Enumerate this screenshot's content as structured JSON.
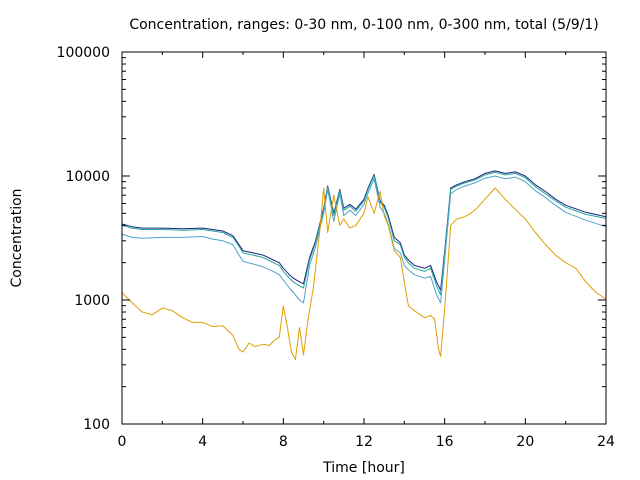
{
  "chart_data": {
    "type": "line",
    "title": "Concentration, ranges: 0-30 nm, 0-100 nm, 0-300 nm, total (5/9/1)",
    "xlabel": "Time [hour]",
    "ylabel": "Concentration",
    "xlim": [
      0,
      24
    ],
    "ylim": [
      100,
      100000
    ],
    "yscale": "log",
    "x_ticks": [
      "0",
      "4",
      "8",
      "12",
      "16",
      "20",
      "24"
    ],
    "y_ticks": [
      "100",
      "1000",
      "10000",
      "100000"
    ],
    "grid": false,
    "legend": "none",
    "series": [
      {
        "color": "#1a237e",
        "x": [
          0,
          0.5,
          1,
          2,
          3,
          4,
          4.5,
          5,
          5.5,
          5.8,
          6,
          6.5,
          7,
          7.5,
          7.8,
          8,
          8.3,
          8.5,
          8.8,
          9,
          9.3,
          9.6,
          10,
          10.2,
          10.5,
          10.8,
          11,
          11.3,
          11.6,
          12,
          12.2,
          12.5,
          12.8,
          13,
          13.2,
          13.5,
          13.8,
          14,
          14.2,
          14.5,
          15,
          15.3,
          15.6,
          15.8,
          16,
          16.3,
          16.6,
          17,
          17.5,
          18,
          18.5,
          19,
          19.5,
          20,
          20.5,
          21,
          21.5,
          22,
          23,
          24
        ],
        "y": [
          4100,
          3900,
          3800,
          3800,
          3750,
          3800,
          3700,
          3600,
          3300,
          2800,
          2500,
          2400,
          2300,
          2100,
          2000,
          1800,
          1600,
          1500,
          1400,
          1350,
          2200,
          3000,
          5500,
          8300,
          5000,
          7800,
          5500,
          5900,
          5400,
          6500,
          8000,
          10300,
          6300,
          5800,
          4800,
          3200,
          2900,
          2300,
          2100,
          1900,
          1800,
          1900,
          1400,
          1200,
          2500,
          8000,
          8500,
          9000,
          9500,
          10500,
          11000,
          10500,
          10800,
          10000,
          8500,
          7500,
          6500,
          5800,
          5100,
          4700
        ]
      },
      {
        "color": "#26a69a",
        "x": [
          0,
          0.5,
          1,
          2,
          3,
          4,
          4.5,
          5,
          5.5,
          5.8,
          6,
          6.5,
          7,
          7.5,
          7.8,
          8,
          8.3,
          8.5,
          8.8,
          9,
          9.3,
          9.6,
          10,
          10.2,
          10.5,
          10.8,
          11,
          11.3,
          11.6,
          12,
          12.2,
          12.5,
          12.8,
          13,
          13.2,
          13.5,
          13.8,
          14,
          14.2,
          14.5,
          15,
          15.3,
          15.6,
          15.8,
          16,
          16.3,
          16.6,
          17,
          17.5,
          18,
          18.5,
          19,
          19.5,
          20,
          20.5,
          21,
          21.5,
          22,
          23,
          24
        ],
        "y": [
          4000,
          3800,
          3700,
          3700,
          3650,
          3700,
          3600,
          3500,
          3200,
          2700,
          2400,
          2300,
          2200,
          2000,
          1900,
          1700,
          1500,
          1400,
          1300,
          1250,
          2100,
          2900,
          5300,
          8100,
          4800,
          7600,
          5300,
          5700,
          5200,
          6300,
          7800,
          10100,
          6100,
          5600,
          4600,
          3000,
          2800,
          2200,
          2000,
          1800,
          1700,
          1800,
          1300,
          1100,
          2400,
          7800,
          8300,
          8800,
          9300,
          10200,
          10700,
          10200,
          10500,
          9700,
          8200,
          7200,
          6300,
          5600,
          4900,
          4550
        ]
      },
      {
        "color": "#4fa3c7",
        "x": [
          0,
          0.5,
          1,
          2,
          3,
          4,
          4.5,
          5,
          5.5,
          5.8,
          6,
          6.5,
          7,
          7.5,
          7.8,
          8,
          8.3,
          8.5,
          8.8,
          9,
          9.3,
          9.6,
          10,
          10.2,
          10.5,
          10.8,
          11,
          11.3,
          11.6,
          12,
          12.2,
          12.5,
          12.8,
          13,
          13.2,
          13.5,
          13.8,
          14,
          14.2,
          14.5,
          15,
          15.3,
          15.6,
          15.8,
          16,
          16.3,
          16.6,
          17,
          17.5,
          18,
          18.5,
          19,
          19.5,
          20,
          20.5,
          21,
          21.5,
          22,
          23,
          24
        ],
        "y": [
          3400,
          3200,
          3150,
          3200,
          3200,
          3250,
          3100,
          3000,
          2800,
          2300,
          2050,
          1950,
          1850,
          1700,
          1600,
          1450,
          1250,
          1150,
          1000,
          950,
          1900,
          2700,
          5000,
          7800,
          4300,
          7200,
          4800,
          5300,
          4800,
          5900,
          7300,
          9500,
          5600,
          5000,
          4100,
          2600,
          2400,
          1900,
          1750,
          1600,
          1500,
          1550,
          1100,
          950,
          2100,
          7200,
          7800,
          8300,
          8800,
          9600,
          10000,
          9500,
          9800,
          9000,
          7600,
          6700,
          5800,
          5100,
          4400,
          3900
        ]
      },
      {
        "color": "#e09f00",
        "x": [
          0,
          0.5,
          1,
          1.5,
          2,
          2.5,
          3,
          3.5,
          4,
          4.5,
          5,
          5.5,
          5.8,
          6,
          6.3,
          6.6,
          7,
          7.3,
          7.6,
          7.8,
          8,
          8.2,
          8.4,
          8.6,
          8.8,
          9,
          9.2,
          9.5,
          9.8,
          10,
          10.2,
          10.5,
          10.8,
          11,
          11.3,
          11.6,
          12,
          12.2,
          12.5,
          12.8,
          13,
          13.2,
          13.5,
          13.8,
          14,
          14.2,
          14.5,
          15,
          15.3,
          15.5,
          15.7,
          15.8,
          16,
          16.3,
          16.6,
          17,
          17.3,
          17.6,
          18,
          18.5,
          19,
          19.3,
          19.6,
          20,
          20.5,
          21,
          21.5,
          22,
          22.5,
          23,
          23.5,
          24
        ],
        "y": [
          1150,
          950,
          800,
          760,
          860,
          820,
          720,
          660,
          660,
          610,
          620,
          520,
          400,
          380,
          450,
          420,
          440,
          430,
          480,
          500,
          900,
          600,
          380,
          330,
          600,
          360,
          650,
          1300,
          3500,
          8000,
          3500,
          7000,
          4000,
          4500,
          3800,
          4000,
          5000,
          6800,
          5000,
          7500,
          4800,
          4000,
          2500,
          2200,
          1400,
          900,
          820,
          720,
          750,
          700,
          400,
          350,
          850,
          4000,
          4500,
          4700,
          5000,
          5500,
          6500,
          8000,
          6500,
          5800,
          5200,
          4500,
          3500,
          2800,
          2300,
          2000,
          1800,
          1400,
          1150,
          1020
        ]
      }
    ]
  }
}
